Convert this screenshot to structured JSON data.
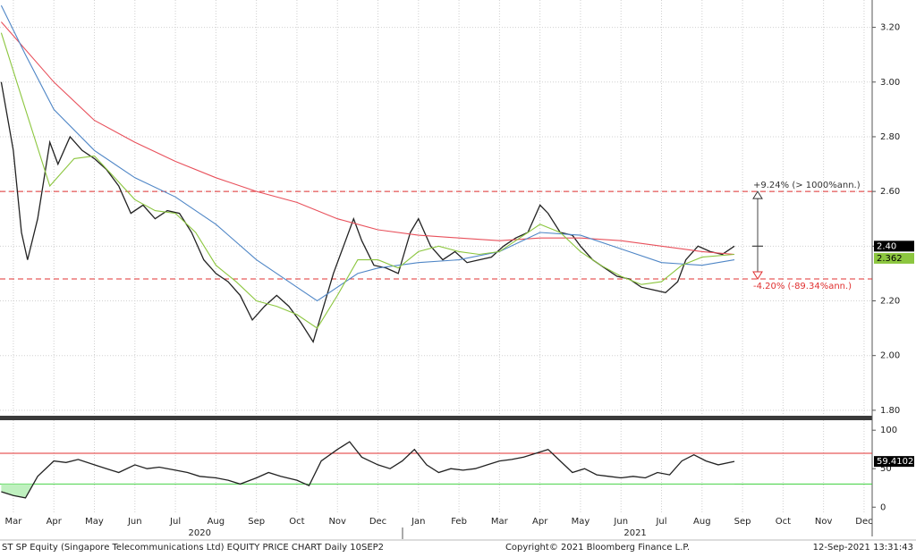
{
  "chart_data": [
    {
      "type": "line",
      "xlim": [
        -0.33,
        21.2
      ],
      "ylim": [
        1.78,
        3.3
      ],
      "yticks": [
        {
          "value": 1.8,
          "label": "1.80"
        },
        {
          "value": 2.0,
          "label": "2.00"
        },
        {
          "value": 2.2,
          "label": "2.20"
        },
        {
          "value": 2.4,
          "label": "2.40"
        },
        {
          "value": 2.6,
          "label": "2.60"
        },
        {
          "value": 2.8,
          "label": "2.80"
        },
        {
          "value": 3.0,
          "label": "3.00"
        },
        {
          "value": 3.2,
          "label": "3.20"
        }
      ],
      "grid": true,
      "series": [
        {
          "color": "#222222",
          "x": [
            -0.3,
            0,
            0.2,
            0.35,
            0.6,
            0.9,
            1.1,
            1.4,
            1.7,
            2.0,
            2.3,
            2.6,
            2.9,
            3.2,
            3.5,
            3.8,
            4.1,
            4.4,
            4.7,
            5.0,
            5.3,
            5.6,
            5.9,
            6.2,
            6.5,
            6.8,
            7.1,
            7.4,
            7.6,
            7.9,
            8.2,
            8.4,
            8.6,
            8.9,
            9.2,
            9.5,
            9.8,
            10.0,
            10.3,
            10.6,
            10.9,
            11.2,
            11.5,
            11.8,
            12.1,
            12.4,
            12.7,
            13.0,
            13.2,
            13.5,
            13.8,
            14.0,
            14.3,
            14.6,
            14.9,
            15.2,
            15.5,
            15.8,
            16.1,
            16.4,
            16.6,
            16.9,
            17.2,
            17.5,
            17.8
          ],
          "values": [
            3.0,
            2.75,
            2.45,
            2.35,
            2.5,
            2.78,
            2.7,
            2.8,
            2.75,
            2.72,
            2.68,
            2.62,
            2.52,
            2.55,
            2.5,
            2.53,
            2.52,
            2.45,
            2.35,
            2.3,
            2.27,
            2.22,
            2.13,
            2.18,
            2.22,
            2.18,
            2.12,
            2.05,
            2.15,
            2.3,
            2.42,
            2.5,
            2.42,
            2.33,
            2.32,
            2.3,
            2.45,
            2.5,
            2.4,
            2.35,
            2.38,
            2.34,
            2.35,
            2.36,
            2.4,
            2.43,
            2.45,
            2.55,
            2.52,
            2.45,
            2.44,
            2.4,
            2.35,
            2.32,
            2.29,
            2.28,
            2.25,
            2.24,
            2.23,
            2.27,
            2.35,
            2.4,
            2.38,
            2.37,
            2.4
          ]
        },
        {
          "color": "#e8505b",
          "x": [
            -0.3,
            1,
            2,
            3,
            4,
            5,
            6,
            7,
            8,
            9,
            10,
            11,
            12,
            13,
            14,
            15,
            16,
            17,
            17.8
          ],
          "values": [
            3.22,
            3.0,
            2.86,
            2.78,
            2.71,
            2.65,
            2.6,
            2.56,
            2.5,
            2.46,
            2.44,
            2.43,
            2.42,
            2.43,
            2.43,
            2.42,
            2.4,
            2.38,
            2.37
          ]
        },
        {
          "color": "#4f86c6",
          "x": [
            -0.3,
            0.3,
            1,
            2,
            3,
            4,
            5,
            6,
            7,
            7.5,
            8,
            8.5,
            9,
            10,
            11,
            12,
            13,
            14,
            15,
            16,
            17,
            17.8
          ],
          "values": [
            3.28,
            3.1,
            2.9,
            2.75,
            2.65,
            2.58,
            2.48,
            2.35,
            2.25,
            2.2,
            2.25,
            2.3,
            2.32,
            2.34,
            2.35,
            2.38,
            2.45,
            2.44,
            2.39,
            2.34,
            2.33,
            2.35
          ]
        },
        {
          "color": "#8cc63f",
          "x": [
            -0.3,
            0.3,
            0.9,
            1.5,
            2,
            2.5,
            3,
            3.5,
            4,
            4.5,
            5,
            5.5,
            6,
            6.5,
            7,
            7.5,
            8,
            8.5,
            9,
            9.5,
            10,
            10.5,
            11,
            11.5,
            12,
            12.5,
            13,
            13.5,
            14,
            14.5,
            15,
            15.5,
            16,
            16.5,
            17,
            17.8
          ],
          "values": [
            3.18,
            2.9,
            2.62,
            2.72,
            2.73,
            2.65,
            2.57,
            2.53,
            2.52,
            2.45,
            2.33,
            2.27,
            2.2,
            2.18,
            2.15,
            2.1,
            2.22,
            2.35,
            2.35,
            2.32,
            2.38,
            2.4,
            2.38,
            2.37,
            2.38,
            2.43,
            2.48,
            2.45,
            2.38,
            2.33,
            2.29,
            2.26,
            2.27,
            2.33,
            2.36,
            2.37
          ]
        }
      ],
      "ref_lines": [
        {
          "value": 2.6,
          "color": "#e03030"
        },
        {
          "value": 2.28,
          "color": "#e03030"
        }
      ],
      "annotations": [
        {
          "text": "+9.24% (> 1000%ann.)",
          "value": 2.6,
          "color": "#333333"
        },
        {
          "text": "-4.20% (-89.34%ann.)",
          "value": 2.28,
          "color": "#e03030"
        }
      ],
      "price_tags": [
        {
          "value": 2.4,
          "label": "2.40",
          "color": "#000000"
        },
        {
          "value": 2.362,
          "label": "2.362",
          "color": "#8cc63f"
        }
      ]
    },
    {
      "type": "line",
      "xlim": [
        -0.33,
        21.2
      ],
      "ylim": [
        -9,
        113
      ],
      "yticks": [
        0,
        50,
        100
      ],
      "xticks": [
        {
          "value": 0,
          "label": "Mar"
        },
        {
          "value": 1,
          "label": "Apr"
        },
        {
          "value": 2,
          "label": "May"
        },
        {
          "value": 3,
          "label": "Jun"
        },
        {
          "value": 4,
          "label": "Jul"
        },
        {
          "value": 5,
          "label": "Aug"
        },
        {
          "value": 6,
          "label": "Sep"
        },
        {
          "value": 7,
          "label": "Oct"
        },
        {
          "value": 8,
          "label": "Nov"
        },
        {
          "value": 9,
          "label": "Dec"
        },
        {
          "value": 10,
          "label": "Jan"
        },
        {
          "value": 11,
          "label": "Feb"
        },
        {
          "value": 12,
          "label": "Mar"
        },
        {
          "value": 13,
          "label": "Apr"
        },
        {
          "value": 14,
          "label": "May"
        },
        {
          "value": 15,
          "label": "Jun"
        },
        {
          "value": 16,
          "label": "Jul"
        },
        {
          "value": 17,
          "label": "Aug"
        },
        {
          "value": 18,
          "label": "Sep"
        },
        {
          "value": 19,
          "label": "Oct"
        },
        {
          "value": 20,
          "label": "Nov"
        },
        {
          "value": 21,
          "label": "Dec"
        }
      ],
      "year_labels": [
        {
          "value": 4.6,
          "label": "2020"
        },
        {
          "value": 15.35,
          "label": "2021"
        }
      ],
      "series": [
        {
          "color": "#222222",
          "x": [
            -0.3,
            0,
            0.3,
            0.6,
            1,
            1.3,
            1.6,
            2,
            2.3,
            2.6,
            3,
            3.3,
            3.6,
            4,
            4.3,
            4.6,
            5,
            5.3,
            5.6,
            6,
            6.3,
            6.6,
            7,
            7.3,
            7.6,
            8,
            8.3,
            8.6,
            9,
            9.3,
            9.6,
            9.9,
            10.2,
            10.5,
            10.8,
            11.1,
            11.4,
            11.7,
            12,
            12.3,
            12.6,
            12.9,
            13.2,
            13.5,
            13.8,
            14.1,
            14.4,
            14.7,
            15,
            15.3,
            15.6,
            15.9,
            16.2,
            16.5,
            16.8,
            17.1,
            17.4,
            17.8
          ],
          "values": [
            20,
            15,
            12,
            40,
            60,
            58,
            62,
            55,
            50,
            45,
            55,
            50,
            52,
            48,
            45,
            40,
            38,
            35,
            30,
            38,
            45,
            40,
            35,
            28,
            60,
            75,
            85,
            65,
            55,
            50,
            60,
            75,
            55,
            45,
            50,
            48,
            50,
            55,
            60,
            62,
            65,
            70,
            75,
            60,
            45,
            50,
            42,
            40,
            38,
            40,
            38,
            45,
            42,
            60,
            68,
            60,
            55,
            59.4102
          ]
        }
      ],
      "ref_lines": [
        {
          "value": 70,
          "color": "#e03030"
        },
        {
          "value": 30,
          "color": "#3cd03c"
        }
      ],
      "price_tags": [
        {
          "value": 59.4102,
          "label": "59.4102",
          "color": "#000000"
        }
      ]
    }
  ],
  "footer": {
    "left": "ST SP Equity (Singapore Telecommunications Ltd) EQUITY PRICE CHART  Daily 10SEP2",
    "center": "Copyright© 2021 Bloomberg Finance L.P.",
    "right": "12-Sep-2021 13:31:43"
  }
}
